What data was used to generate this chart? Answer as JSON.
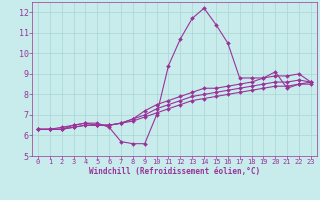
{
  "xlabel": "Windchill (Refroidissement éolien,°C)",
  "bg_color": "#c8ecec",
  "grid_color": "#aad4d4",
  "line_color": "#993399",
  "xlim": [
    -0.5,
    23.5
  ],
  "ylim": [
    5,
    12.5
  ],
  "xticks": [
    0,
    1,
    2,
    3,
    4,
    5,
    6,
    7,
    8,
    9,
    10,
    11,
    12,
    13,
    14,
    15,
    16,
    17,
    18,
    19,
    20,
    21,
    22,
    23
  ],
  "yticks": [
    5,
    6,
    7,
    8,
    9,
    10,
    11,
    12
  ],
  "curve1_x": [
    0,
    1,
    2,
    3,
    4,
    5,
    6,
    7,
    8,
    9,
    10,
    11,
    12,
    13,
    14,
    15,
    16,
    17,
    18,
    19,
    20,
    21,
    22,
    23
  ],
  "curve1_y": [
    6.3,
    6.3,
    6.3,
    6.5,
    6.6,
    6.6,
    6.4,
    5.7,
    5.6,
    5.6,
    7.0,
    9.4,
    10.7,
    11.7,
    12.2,
    11.4,
    10.5,
    8.8,
    8.8,
    8.8,
    9.1,
    8.3,
    8.5,
    8.6
  ],
  "curve2_x": [
    0,
    1,
    2,
    3,
    4,
    5,
    6,
    7,
    8,
    9,
    10,
    11,
    12,
    13,
    14,
    15,
    16,
    17,
    18,
    19,
    20,
    21,
    22,
    23
  ],
  "curve2_y": [
    6.3,
    6.3,
    6.4,
    6.5,
    6.6,
    6.5,
    6.5,
    6.6,
    6.8,
    7.2,
    7.5,
    7.7,
    7.9,
    8.1,
    8.3,
    8.3,
    8.4,
    8.5,
    8.6,
    8.8,
    8.9,
    8.9,
    9.0,
    8.6
  ],
  "curve3_x": [
    0,
    1,
    2,
    3,
    4,
    5,
    6,
    7,
    8,
    9,
    10,
    11,
    12,
    13,
    14,
    15,
    16,
    17,
    18,
    19,
    20,
    21,
    22,
    23
  ],
  "curve3_y": [
    6.3,
    6.3,
    6.3,
    6.4,
    6.5,
    6.5,
    6.5,
    6.6,
    6.8,
    7.0,
    7.3,
    7.5,
    7.7,
    7.9,
    8.0,
    8.1,
    8.2,
    8.3,
    8.4,
    8.5,
    8.6,
    8.6,
    8.7,
    8.6
  ],
  "curve4_x": [
    0,
    1,
    2,
    3,
    4,
    5,
    6,
    7,
    8,
    9,
    10,
    11,
    12,
    13,
    14,
    15,
    16,
    17,
    18,
    19,
    20,
    21,
    22,
    23
  ],
  "curve4_y": [
    6.3,
    6.3,
    6.3,
    6.4,
    6.5,
    6.5,
    6.5,
    6.6,
    6.7,
    6.9,
    7.1,
    7.3,
    7.5,
    7.7,
    7.8,
    7.9,
    8.0,
    8.1,
    8.2,
    8.3,
    8.4,
    8.4,
    8.5,
    8.5
  ],
  "tick_fontsize": 5,
  "xlabel_fontsize": 5.5
}
